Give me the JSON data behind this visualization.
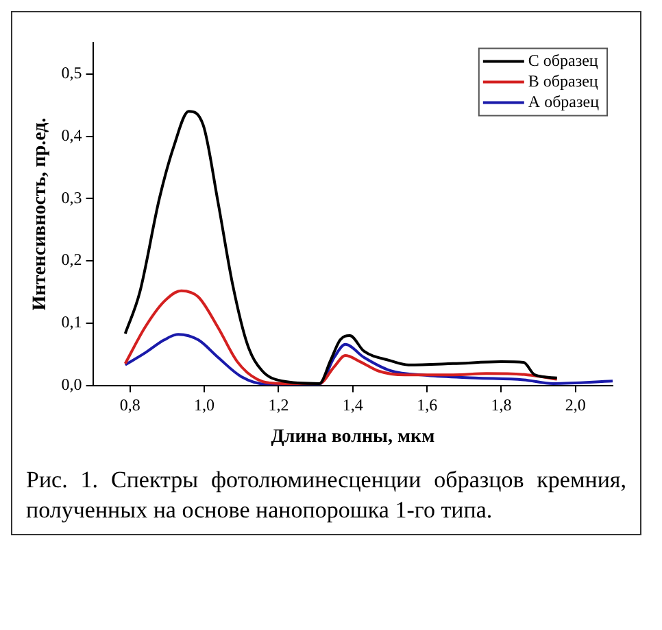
{
  "chart_data": {
    "type": "line",
    "xlabel": "Длина волны, мкм",
    "ylabel": "Интенсивность, пр.ед.",
    "annotations": [
      "Рис. 1. Спектры фотолюминесценции образцов кремния, полученных на основе нанопорошка 1-го типа."
    ],
    "xlim": [
      0.7,
      2.1
    ],
    "ylim": [
      0,
      0.55
    ],
    "xticks": [
      {
        "value": 0.8,
        "label": "0,8"
      },
      {
        "value": 1.0,
        "label": "1,0"
      },
      {
        "value": 1.2,
        "label": "1,2"
      },
      {
        "value": 1.4,
        "label": "1,4"
      },
      {
        "value": 1.6,
        "label": "1,6"
      },
      {
        "value": 1.8,
        "label": "1,8"
      },
      {
        "value": 2.0,
        "label": "2,0"
      }
    ],
    "yticks": [
      {
        "value": 0,
        "label": "0,0"
      },
      {
        "value": 0.1,
        "label": "0,1"
      },
      {
        "value": 0.2,
        "label": "0,2"
      },
      {
        "value": 0.3,
        "label": "0,3"
      },
      {
        "value": 0.4,
        "label": "0,4"
      },
      {
        "value": 0.5,
        "label": "0,5"
      }
    ],
    "legend": "top right",
    "grid": false,
    "marker": "none",
    "line_style": "solid",
    "series": [
      {
        "name": "С образец",
        "color": "#000000",
        "x": [
          0.787,
          0.826,
          0.879,
          0.918,
          0.958,
          0.997,
          1.037,
          1.076,
          1.116,
          1.155,
          1.21,
          1.31,
          1.34,
          1.366,
          1.392,
          1.43,
          1.5,
          1.55,
          1.67,
          1.8,
          1.86,
          1.89,
          1.95
        ],
        "values": [
          0.083,
          0.149,
          0.3,
          0.384,
          0.44,
          0.418,
          0.294,
          0.163,
          0.066,
          0.024,
          0.007,
          0.003,
          0.04,
          0.073,
          0.08,
          0.055,
          0.04,
          0.033,
          0.035,
          0.038,
          0.037,
          0.017,
          0.012
        ]
      },
      {
        "name": "В образец",
        "color": "#d42020",
        "x": [
          0.787,
          0.84,
          0.892,
          0.938,
          0.984,
          1.037,
          1.089,
          1.142,
          1.21,
          1.31,
          1.35,
          1.38,
          1.42,
          1.47,
          1.54,
          1.67,
          1.76,
          1.87,
          1.95
        ],
        "values": [
          0.035,
          0.093,
          0.135,
          0.152,
          0.142,
          0.093,
          0.038,
          0.01,
          0.003,
          0.003,
          0.03,
          0.048,
          0.038,
          0.023,
          0.017,
          0.017,
          0.019,
          0.017,
          0.01
        ]
      },
      {
        "name": "А образец",
        "color": "#1a1aaa",
        "x": [
          0.787,
          0.84,
          0.892,
          0.93,
          0.984,
          1.037,
          1.1,
          1.168,
          1.31,
          1.35,
          1.38,
          1.43,
          1.5,
          1.6,
          1.73,
          1.86,
          1.94,
          2.1
        ],
        "values": [
          0.033,
          0.052,
          0.073,
          0.082,
          0.073,
          0.045,
          0.014,
          0.002,
          0.002,
          0.045,
          0.066,
          0.045,
          0.024,
          0.016,
          0.012,
          0.009,
          0.003,
          0.007
        ]
      }
    ]
  }
}
